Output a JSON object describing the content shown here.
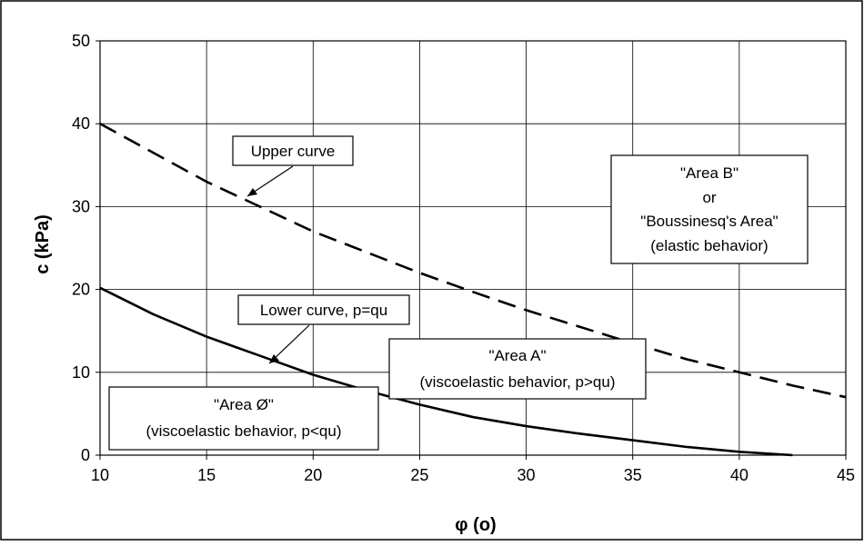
{
  "chart_data": {
    "type": "line",
    "title": "",
    "xlabel": "φ (o)",
    "ylabel": "c (kPa)",
    "xlim": [
      10,
      45
    ],
    "ylim": [
      0,
      50
    ],
    "xticks": [
      10,
      15,
      20,
      25,
      30,
      35,
      40,
      45
    ],
    "yticks": [
      0,
      10,
      20,
      30,
      40,
      50
    ],
    "grid": true,
    "legend": "none",
    "series": [
      {
        "key": "upper",
        "style": "dashed",
        "color": "#000000",
        "x": [
          10,
          12.5,
          15,
          17.5,
          20,
          22.5,
          25,
          27.5,
          30,
          32.5,
          35,
          37.5,
          40,
          42.5,
          45
        ],
        "y": [
          40,
          36.5,
          33,
          30,
          27,
          24.5,
          22,
          19.7,
          17.5,
          15.5,
          13.5,
          11.6,
          10,
          8.4,
          7
        ]
      },
      {
        "key": "lower",
        "style": "solid",
        "color": "#000000",
        "x": [
          10,
          12.5,
          15,
          17.5,
          20,
          22.5,
          25,
          27.5,
          30,
          32.5,
          35,
          37.5,
          40,
          42.5
        ],
        "y": [
          20.2,
          17,
          14.3,
          12,
          9.7,
          7.8,
          6.1,
          4.6,
          3.5,
          2.6,
          1.8,
          1.0,
          0.4,
          0
        ]
      }
    ],
    "annotations": {
      "upper_curve": {
        "text": "Upper curve",
        "point_x": 17,
        "point_y": 30.5
      },
      "lower_curve": {
        "text": "Lower curve, p=qu",
        "point_x": 18,
        "point_y": 11
      },
      "area_b": {
        "lines": [
          "\"Area B\"",
          "or",
          "\"Boussinesq's Area\"",
          "(elastic behavior)"
        ]
      },
      "area_a": {
        "lines": [
          "\"Area A\"",
          "(viscoelastic behavior, p>qu)"
        ]
      },
      "area_o": {
        "lines": [
          "\"Area Ø\"",
          "(viscoelastic behavior, p<qu)"
        ]
      }
    }
  }
}
